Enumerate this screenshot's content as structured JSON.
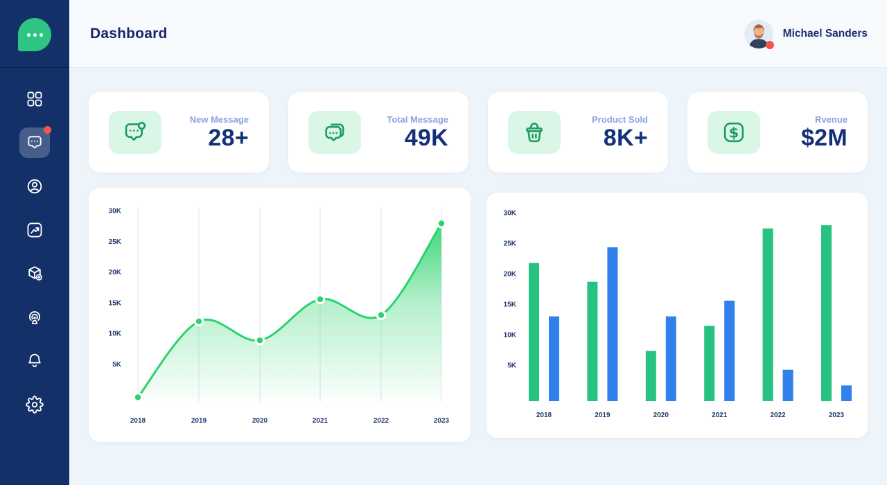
{
  "header": {
    "title": "Dashboard",
    "user_name": "Michael Sanders"
  },
  "sidebar": {
    "logo_icon": "chat-bubble-logo",
    "items": [
      {
        "id": "dashboard",
        "icon": "grid-icon",
        "active": false,
        "badge": false
      },
      {
        "id": "messages",
        "icon": "chat-icon",
        "active": true,
        "badge": true
      },
      {
        "id": "profile",
        "icon": "user-icon",
        "active": false,
        "badge": false
      },
      {
        "id": "analytics",
        "icon": "chart-up-icon",
        "active": false,
        "badge": false
      },
      {
        "id": "products",
        "icon": "package-icon",
        "active": false,
        "badge": false
      },
      {
        "id": "broadcast",
        "icon": "podcast-icon",
        "active": false,
        "badge": false
      },
      {
        "id": "notifications",
        "icon": "bell-icon",
        "active": false,
        "badge": false
      },
      {
        "id": "settings",
        "icon": "gear-icon",
        "active": false,
        "badge": false
      }
    ]
  },
  "stats": [
    {
      "label": "New Message",
      "value": "28+",
      "icon": "chat-new-icon"
    },
    {
      "label": "Total Message",
      "value": "49K",
      "icon": "chat-multi-icon"
    },
    {
      "label": "Product Sold",
      "value": "8K+",
      "icon": "basket-icon"
    },
    {
      "label": "Rvenue",
      "value": "$2M",
      "icon": "dollar-icon"
    }
  ],
  "chart_data": [
    {
      "id": "messages-trend",
      "type": "area",
      "x": [
        "2018",
        "2019",
        "2020",
        "2021",
        "2022",
        "2023"
      ],
      "values": [
        500,
        12500,
        9500,
        16000,
        13500,
        28000
      ],
      "ylim": [
        0,
        30000
      ],
      "yticks": [
        "30K",
        "25K",
        "20K",
        "15K",
        "10K",
        "5K"
      ],
      "line_color": "#2bd36c",
      "marker": "circle-white-ring",
      "grid": "vertical",
      "legend": "none",
      "title": ""
    },
    {
      "id": "yearly-comparison",
      "type": "bar",
      "categories": [
        "2018",
        "2019",
        "2020",
        "2021",
        "2022",
        "2023"
      ],
      "series": [
        {
          "name": "green",
          "color": "#27c281",
          "values": [
            22000,
            19000,
            8000,
            12000,
            27500,
            28000
          ]
        },
        {
          "name": "blue",
          "color": "#3181ed",
          "values": [
            13500,
            24500,
            13500,
            16000,
            5000,
            2500
          ]
        }
      ],
      "ylim": [
        0,
        30000
      ],
      "yticks": [
        "30K",
        "25K",
        "20K",
        "15K",
        "10K",
        "5K"
      ],
      "grid": "none",
      "legend": "none",
      "title": ""
    }
  ],
  "colors": {
    "sidebar_navy": "#143069",
    "logo_green": "#2ec482",
    "mint_tile": "#d9f6e7",
    "icon_green": "#1f9d60",
    "stat_label_blue": "#8ba1e3",
    "value_navy": "#15307a",
    "line_green": "#2bd36c",
    "bar_green": "#27c281",
    "bar_blue": "#3181ed",
    "alert_red": "#f4564f"
  }
}
